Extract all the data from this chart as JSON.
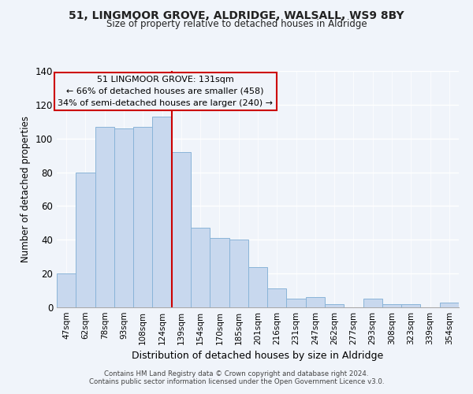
{
  "title1": "51, LINGMOOR GROVE, ALDRIDGE, WALSALL, WS9 8BY",
  "title2": "Size of property relative to detached houses in Aldridge",
  "xlabel": "Distribution of detached houses by size in Aldridge",
  "ylabel": "Number of detached properties",
  "categories": [
    "47sqm",
    "62sqm",
    "78sqm",
    "93sqm",
    "108sqm",
    "124sqm",
    "139sqm",
    "154sqm",
    "170sqm",
    "185sqm",
    "201sqm",
    "216sqm",
    "231sqm",
    "247sqm",
    "262sqm",
    "277sqm",
    "293sqm",
    "308sqm",
    "323sqm",
    "339sqm",
    "354sqm"
  ],
  "values": [
    20,
    80,
    107,
    106,
    107,
    113,
    92,
    47,
    41,
    40,
    24,
    11,
    5,
    6,
    2,
    0,
    5,
    2,
    2,
    0,
    3
  ],
  "bar_color": "#c8d8ee",
  "bar_edge_color": "#8ab4d8",
  "annotation_title": "51 LINGMOOR GROVE: 131sqm",
  "annotation_line1": "← 66% of detached houses are smaller (458)",
  "annotation_line2": "34% of semi-detached houses are larger (240) →",
  "vline_color": "#cc0000",
  "annotation_box_edge": "#cc0000",
  "ylim": [
    0,
    140
  ],
  "yticks": [
    0,
    20,
    40,
    60,
    80,
    100,
    120,
    140
  ],
  "footer1": "Contains HM Land Registry data © Crown copyright and database right 2024.",
  "footer2": "Contains public sector information licensed under the Open Government Licence v3.0.",
  "background_color": "#f0f4fa"
}
